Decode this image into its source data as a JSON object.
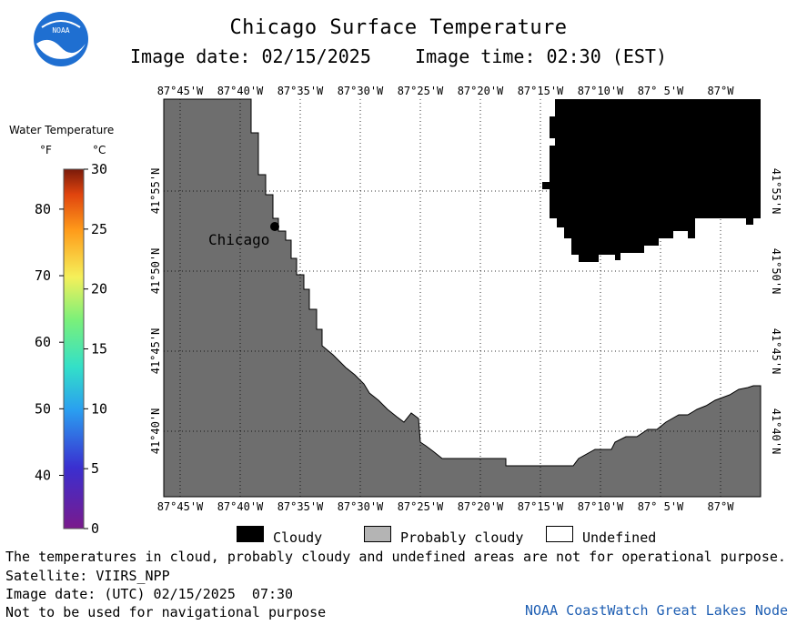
{
  "header": {
    "title": "Chicago Surface Temperature",
    "subtitle": "Image date: 02/15/2025    Image time: 02:30 (EST)",
    "logo_text": "NOAA"
  },
  "colorbar": {
    "title": "Water Temperature",
    "unit_f": "°F",
    "unit_c": "°C",
    "f_ticks": [
      "80",
      "70",
      "60",
      "50",
      "40"
    ],
    "c_ticks": [
      "30",
      "25",
      "20",
      "15",
      "10",
      "5",
      "0"
    ],
    "c_range": [
      0,
      30
    ]
  },
  "map": {
    "lon_labels": [
      "87°45'W",
      "87°40'W",
      "87°35'W",
      "87°30'W",
      "87°25'W",
      "87°20'W",
      "87°15'W",
      "87°10'W",
      "87° 5'W",
      "87°W"
    ],
    "lat_labels": [
      "41°55'N",
      "41°50'N",
      "41°45'N",
      "41°40'N"
    ],
    "city_label": "Chicago",
    "colors": {
      "land": "#6e6e6e",
      "cloudy": "#000000",
      "undefined": "#ffffff",
      "probably_cloudy": "#b4b4b4"
    }
  },
  "legend": {
    "cloudy": "Cloudy",
    "probably_cloudy": "Probably cloudy",
    "undefined": "Undefined"
  },
  "footer": {
    "line1": "The temperatures in cloud, probably cloudy and undefined areas are not for operational purpose.",
    "line2": "Satellite: VIIRS_NPP",
    "line3": "Image date: (UTC) 02/15/2025  07:30",
    "line4": "Not to be used for navigational purpose",
    "credit": "NOAA CoastWatch Great Lakes Node"
  }
}
